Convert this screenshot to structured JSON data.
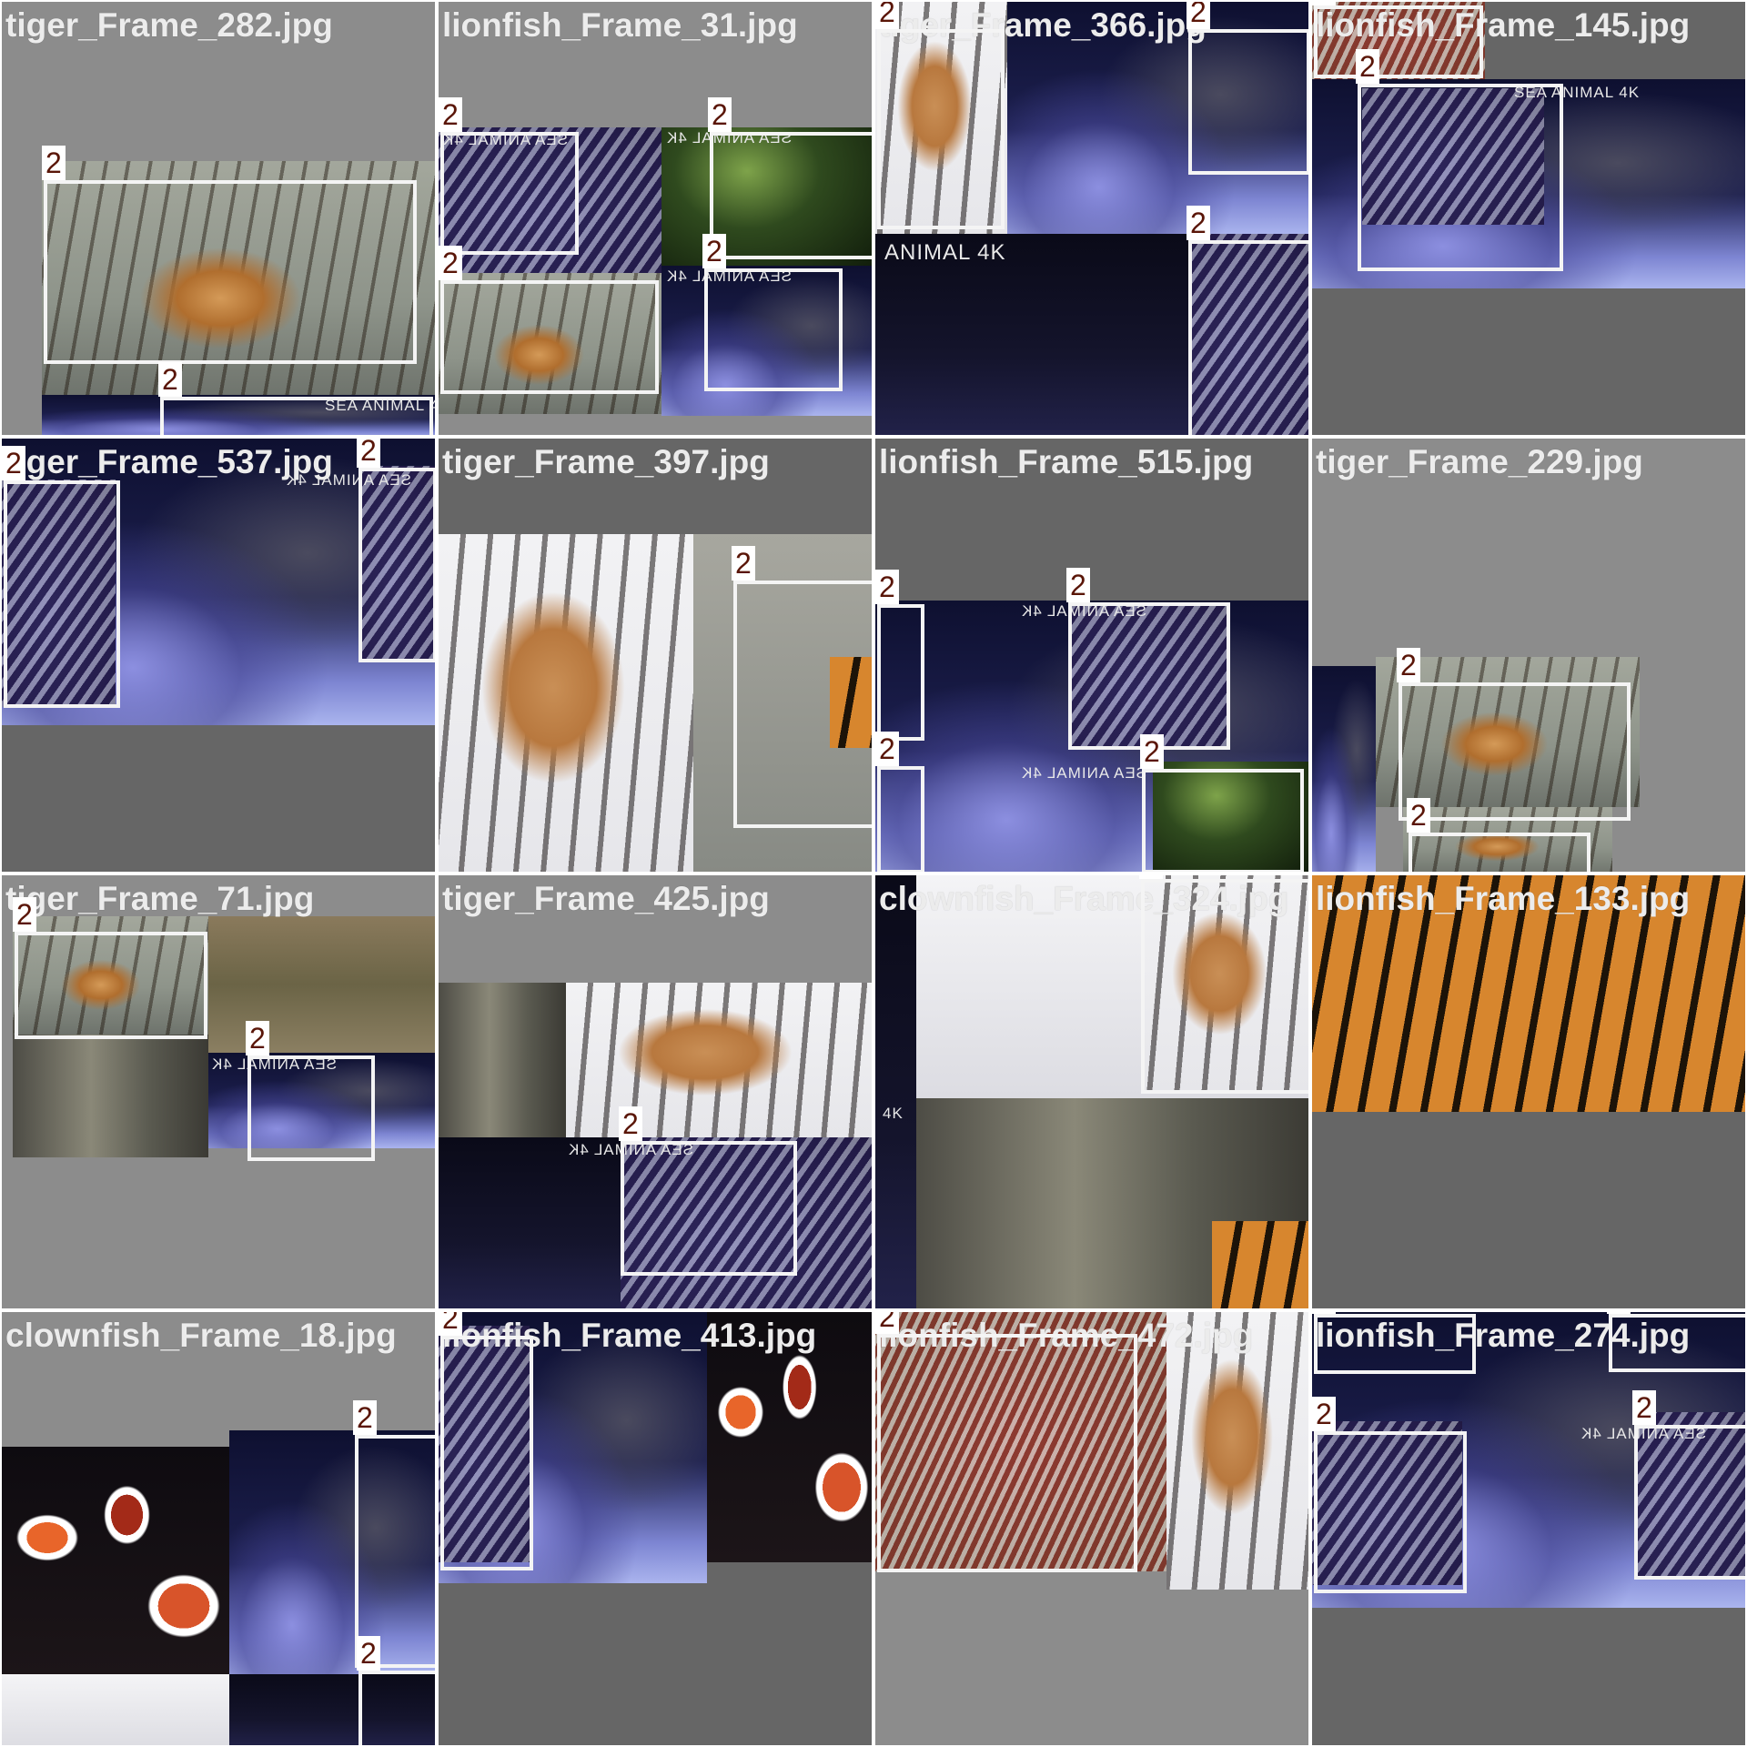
{
  "colors": {
    "tile_background_light": "#8c8c8c",
    "tile_background_dark": "#666666",
    "box_border": "#f4f4f4",
    "label_text": "#5a1608",
    "label_background": "#ffffff",
    "title_text": "#ececec"
  },
  "box_label": "2",
  "watermarks": {
    "sea_animal_4k": "SEA ANIMAL 4K",
    "animal_4k": "ANIMAL 4K",
    "k4": "4K"
  },
  "tiles": [
    {
      "title": "tiger_Frame_282.jpg"
    },
    {
      "title": "lionfish_Frame_31.jpg"
    },
    {
      "title": "tiger_Frame_366.jpg"
    },
    {
      "title": "lionfish_Frame_145.jpg"
    },
    {
      "title": "tiger_Frame_537.jpg"
    },
    {
      "title": "tiger_Frame_397.jpg"
    },
    {
      "title": "lionfish_Frame_515.jpg"
    },
    {
      "title": "tiger_Frame_229.jpg"
    },
    {
      "title": "tiger_Frame_71.jpg"
    },
    {
      "title": "tiger_Frame_425.jpg"
    },
    {
      "title": "clownfish_Frame_324.jpg"
    },
    {
      "title": "lionfish_Frame_133.jpg"
    },
    {
      "title": "clownfish_Frame_18.jpg"
    },
    {
      "title": "lionfish_Frame_413.jpg"
    },
    {
      "title": "lionfish_Frame_472.jpg"
    },
    {
      "title": "lionfish_Frame_274.jpg"
    }
  ]
}
